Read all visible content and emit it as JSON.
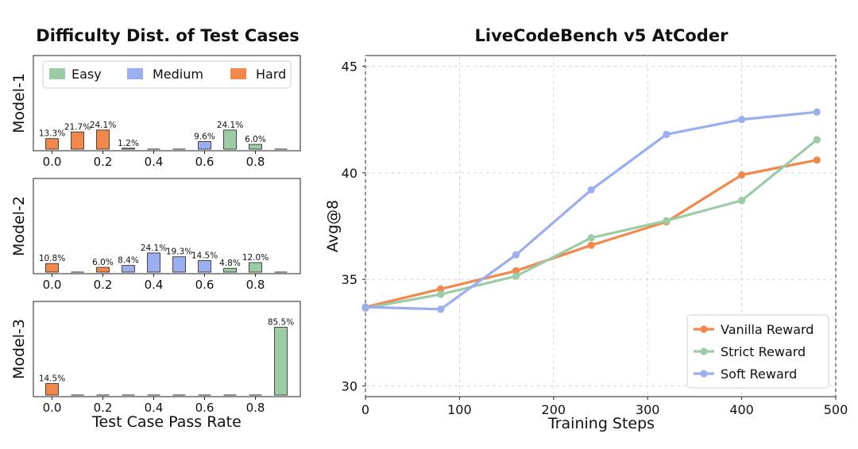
{
  "colors": {
    "easy": "#9ccca5",
    "medium": "#9aaef0",
    "hard": "#f2884b",
    "vanilla": "#f2884b",
    "strict": "#9ccca5",
    "soft": "#9aaef0"
  },
  "left": {
    "title": "Difficulty Dist. of Test Cases",
    "xlabel": "Test Case Pass Rate",
    "xticks": [
      "0.0",
      "0.2",
      "0.4",
      "0.6",
      "0.8"
    ],
    "legend": {
      "easy": "Easy",
      "medium": "Medium",
      "hard": "Hard"
    }
  },
  "right": {
    "title": "LiveCodeBench v5 AtCoder",
    "xlabel": "Training Steps",
    "ylabel": "Avg@8",
    "xticks": [
      "0",
      "100",
      "200",
      "300",
      "400",
      "500"
    ],
    "yticks": [
      "30",
      "35",
      "40",
      "45"
    ]
  },
  "chart_data": [
    {
      "type": "bar",
      "panel": "Model-1",
      "ylabel": "Model-1",
      "categories": [
        "0.0",
        "0.1",
        "0.2",
        "0.3",
        "0.4",
        "0.5",
        "0.6",
        "0.7",
        "0.8",
        "0.9"
      ],
      "values": [
        13.3,
        21.7,
        24.1,
        1.2,
        0,
        0,
        9.6,
        24.1,
        6.0,
        0
      ],
      "labels": [
        "13.3%",
        "21.7%",
        "24.1%",
        "1.2%",
        "",
        "",
        "9.6%",
        "24.1%",
        "6.0%",
        ""
      ],
      "difficulty": [
        "hard",
        "hard",
        "hard",
        "medium",
        "medium",
        "medium",
        "medium",
        "easy",
        "easy",
        "easy"
      ],
      "ymax": 100
    },
    {
      "type": "bar",
      "panel": "Model-2",
      "ylabel": "Model-2",
      "categories": [
        "0.0",
        "0.1",
        "0.2",
        "0.3",
        "0.4",
        "0.5",
        "0.6",
        "0.7",
        "0.8",
        "0.9"
      ],
      "values": [
        10.8,
        0,
        6.0,
        8.4,
        24.1,
        19.3,
        14.5,
        4.8,
        12.0,
        0
      ],
      "labels": [
        "10.8%",
        "",
        "6.0%",
        "8.4%",
        "24.1%",
        "19.3%",
        "14.5%",
        "4.8%",
        "12.0%",
        ""
      ],
      "difficulty": [
        "hard",
        "hard",
        "hard",
        "medium",
        "medium",
        "medium",
        "medium",
        "easy",
        "easy",
        "easy"
      ],
      "ymax": 100
    },
    {
      "type": "bar",
      "panel": "Model-3",
      "ylabel": "Model-3",
      "categories": [
        "0.0",
        "0.1",
        "0.2",
        "0.3",
        "0.4",
        "0.5",
        "0.6",
        "0.7",
        "0.8",
        "0.9"
      ],
      "values": [
        14.5,
        0,
        0,
        0,
        0,
        0,
        0,
        0,
        0,
        85.5
      ],
      "labels": [
        "14.5%",
        "",
        "",
        "",
        "",
        "",
        "",
        "",
        "",
        "85.5%"
      ],
      "difficulty": [
        "hard",
        "hard",
        "hard",
        "medium",
        "medium",
        "medium",
        "medium",
        "easy",
        "easy",
        "easy"
      ],
      "ymax": 100
    },
    {
      "type": "line",
      "title": "LiveCodeBench v5 AtCoder",
      "xlabel": "Training Steps",
      "ylabel": "Avg@8",
      "xlim": [
        0,
        500
      ],
      "ylim": [
        29.5,
        45.5
      ],
      "grid": true,
      "legend_position": "lower-right",
      "series": [
        {
          "name": "Vanilla Reward",
          "color": "#f2884b",
          "x": [
            0,
            80,
            160,
            240,
            320,
            400,
            480
          ],
          "y": [
            33.7,
            34.55,
            35.4,
            36.6,
            37.7,
            39.9,
            40.6
          ]
        },
        {
          "name": "Strict Reward",
          "color": "#9ccca5",
          "x": [
            0,
            80,
            160,
            240,
            320,
            400,
            480
          ],
          "y": [
            33.65,
            34.3,
            35.15,
            36.95,
            37.75,
            38.7,
            41.55
          ]
        },
        {
          "name": "Soft Reward",
          "color": "#9aaef0",
          "x": [
            0,
            80,
            160,
            240,
            320,
            400,
            480
          ],
          "y": [
            33.7,
            33.6,
            36.15,
            39.2,
            41.8,
            42.5,
            42.85
          ]
        }
      ]
    }
  ]
}
